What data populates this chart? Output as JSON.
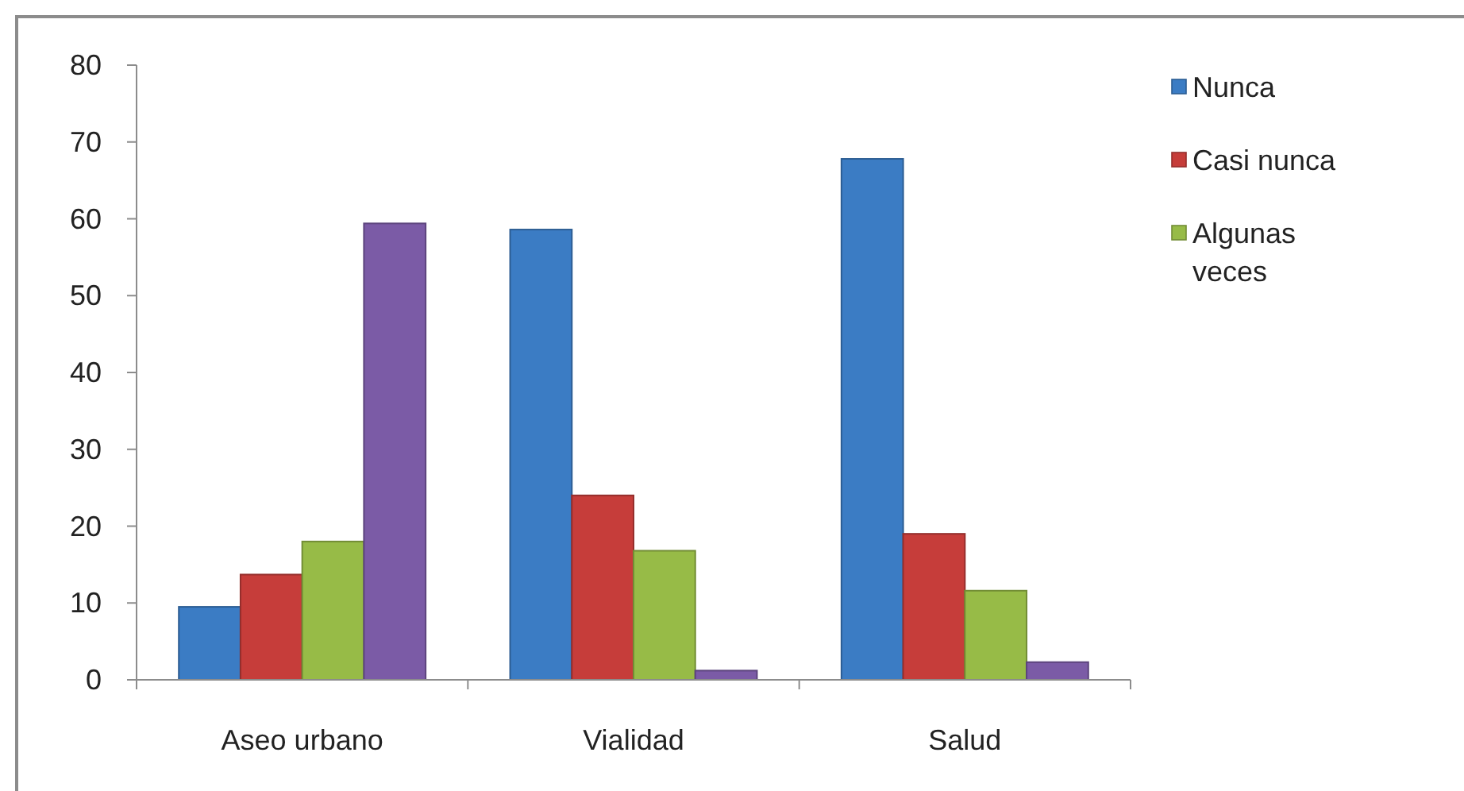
{
  "chart_data": {
    "type": "bar",
    "categories": [
      "Aseo urbano",
      "Vialidad",
      "Salud"
    ],
    "series": [
      {
        "name": "Nunca",
        "color": "#3b7cc4",
        "values": [
          9.5,
          58.6,
          67.8
        ]
      },
      {
        "name": "Casi nunca",
        "color": "#c63d3a",
        "values": [
          13.7,
          24.0,
          19.0
        ]
      },
      {
        "name": "Algunas veces",
        "color": "#97bb47",
        "values": [
          18.0,
          16.8,
          11.6
        ]
      },
      {
        "color": "#7b5ba6",
        "values": [
          59.4,
          1.2,
          2.3
        ]
      }
    ],
    "ylim": [
      0,
      80
    ],
    "yticks": [
      0,
      10,
      20,
      30,
      40,
      50,
      60,
      70,
      80
    ],
    "legend": "top right"
  }
}
